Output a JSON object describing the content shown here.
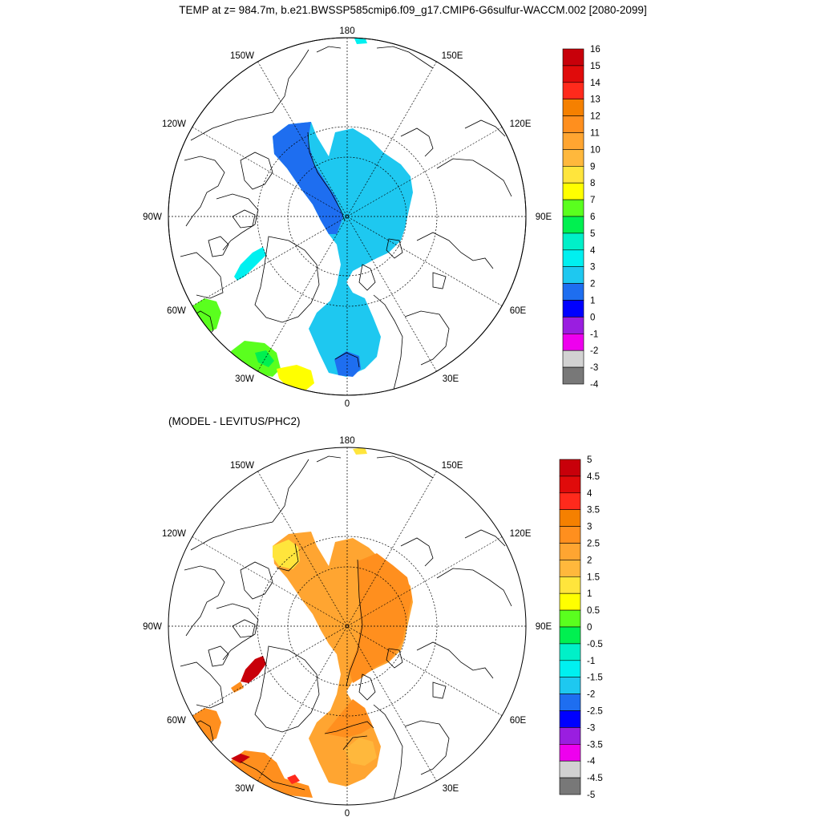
{
  "title": "TEMP at z= 984.7m, b.e21.BWSSP585cmip6.f09_g17.CMIP6-G6sulfur-WACCM.002 [2080-2099]",
  "subtitle": "(MODEL - LEVITUS/PHC2)",
  "map_labels": {
    "n180": "180",
    "n150w": "150W",
    "n150e": "150E",
    "n120w": "120W",
    "n120e": "120E",
    "n90w": "90W",
    "n90e": "90E",
    "n60w": "60W",
    "n60e": "60E",
    "n30w": "30W",
    "n30e": "30E",
    "n0": "0"
  },
  "top_colorbar": {
    "labels": [
      "16",
      "15",
      "14",
      "13",
      "12",
      "11",
      "10",
      "9",
      "8",
      "7",
      "6",
      "5",
      "4",
      "3",
      "2",
      "1",
      "0",
      "-1",
      "-2",
      "-3",
      "-4"
    ],
    "colors": [
      "#c8000a",
      "#e00b0b",
      "#ff2a1c",
      "#f58000",
      "#ff8f1e",
      "#ffa531",
      "#ffb83c",
      "#ffe53c",
      "#ffff00",
      "#5aff1e",
      "#00f050",
      "#00f0c8",
      "#00f0f0",
      "#1ec8f0",
      "#1e6ef0",
      "#0000ff",
      "#9a1ee0",
      "#ee00ee",
      "#d2d2d2",
      "#787878"
    ]
  },
  "bottom_colorbar": {
    "labels": [
      "5",
      "4.5",
      "4",
      "3.5",
      "3",
      "2.5",
      "2",
      "1.5",
      "1",
      "0.5",
      "0",
      "-0.5",
      "-1",
      "-1.5",
      "-2",
      "-2.5",
      "-3",
      "-3.5",
      "-4",
      "-4.5",
      "-5"
    ],
    "colors": [
      "#c8000a",
      "#e00b0b",
      "#ff2a1c",
      "#f58000",
      "#ff8f1e",
      "#ffa531",
      "#ffb83c",
      "#ffe53c",
      "#ffff00",
      "#5aff1e",
      "#00f050",
      "#00f0c8",
      "#00f0f0",
      "#1ec8f0",
      "#1e6ef0",
      "#0000ff",
      "#9a1ee0",
      "#ee00ee",
      "#d2d2d2",
      "#787878"
    ]
  },
  "field_colors": {
    "top_main": "#1ec8f0",
    "top_deep": "#1e6ef0",
    "top_cyan": "#00f0f0",
    "top_green": "#5aff1e",
    "top_green2": "#00f050",
    "top_yellow": "#ffff00",
    "bot_main": "#ffa531",
    "bot_dark": "#ff8f1e",
    "bot_light": "#ffb83c",
    "bot_yellow": "#ffe53c",
    "bot_red": "#c8000a"
  }
}
